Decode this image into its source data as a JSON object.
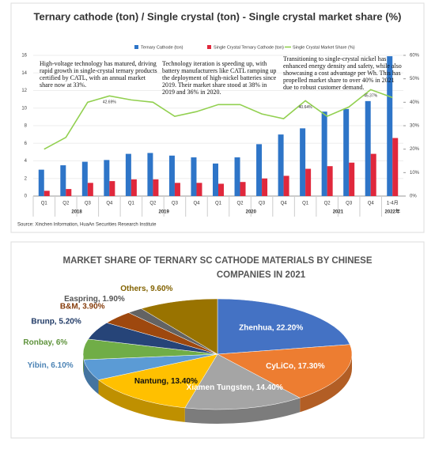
{
  "chart_data": [
    {
      "type": "bar-line",
      "title": "Ternary cathode (ton) / Single crystal (ton) - Single crystal market share (%)",
      "categories": [
        "Q1",
        "Q2",
        "Q3",
        "Q4",
        "Q1",
        "Q2",
        "Q3",
        "Q4",
        "Q1",
        "Q2",
        "Q3",
        "Q4",
        "Q1",
        "Q2",
        "Q3",
        "Q4",
        "1-4月"
      ],
      "groups": [
        "2018",
        "2019",
        "2020",
        "2021",
        "2022年"
      ],
      "series": [
        {
          "name": "Ternary Cathode (ton)",
          "color": "#2e75c8",
          "type": "bar",
          "values": [
            3.0,
            3.5,
            3.9,
            4.1,
            4.8,
            4.9,
            4.6,
            4.4,
            3.7,
            4.4,
            5.9,
            7.0,
            7.7,
            9.6,
            9.9,
            10.8,
            15.9
          ]
        },
        {
          "name": "Single Crystal Ternary Cathode (ton)",
          "color": "#e0283c",
          "type": "bar",
          "values": [
            0.6,
            0.8,
            1.5,
            1.7,
            1.9,
            1.9,
            1.5,
            1.5,
            1.4,
            1.6,
            2.0,
            2.3,
            3.1,
            3.4,
            3.8,
            4.8,
            6.6
          ]
        },
        {
          "name": "Single Crystal Market Share (%)",
          "color": "#92d050",
          "type": "line",
          "axis": "y2",
          "values": [
            20,
            25,
            40,
            42.69,
            41,
            40,
            34,
            36,
            39,
            39,
            35,
            33,
            40.64,
            34,
            38,
            45.37,
            42
          ],
          "value_labels": [
            null,
            null,
            null,
            "42.69%",
            null,
            null,
            null,
            null,
            null,
            null,
            null,
            null,
            "40.64%",
            null,
            null,
            "45.37%",
            null
          ]
        }
      ],
      "ylim": [
        0,
        16
      ],
      "yticks": [
        0,
        2,
        4,
        6,
        8,
        10,
        12,
        14,
        16
      ],
      "y2lim": [
        0,
        60
      ],
      "y2ticks": [
        {
          "value": 0,
          "label": "0%"
        },
        {
          "value": 10,
          "label": "10%"
        },
        {
          "value": 20,
          "label": "20%"
        },
        {
          "value": 30,
          "label": "30%"
        },
        {
          "value": 40,
          "label": "40%"
        },
        {
          "value": 50,
          "label": "50%"
        },
        {
          "value": 60,
          "label": "60%"
        }
      ],
      "annotations": [
        "High-voltage technology has matured, driving rapid growth in single-crystal ternary products certified by CATL, with an annual market share now at 33%.",
        "Technology iteration is speeding up, with battery manufacturers like CATL ramping up the deployment of high-nickel batteries since 2019. Their market share stood at 38% in 2019 and 36% in 2020.",
        "Transitioning to single-crystal nickel has enhanced energy density and safety, while also showcasing a cost advantage per Wh. This has propelled market share to over 40% in 2021 due to robust customer demand."
      ],
      "source": "Source: Xinchen Information, HuaAn Securities Research Institute"
    },
    {
      "type": "pie",
      "title": "MARKET SHARE OF TERNARY SC CATHODE MATERIALS BY CHINESE COMPANIES IN 2021",
      "values": [
        22.2,
        17.3,
        14.4,
        13.4,
        6.1,
        6,
        5.2,
        3.9,
        1.9,
        9.6
      ],
      "value_labels": [
        "Zhenhua, 22.20%",
        "CyLiCo, 17.30%",
        "Xiamen Tungsten, 14.40%",
        "Nantung, 13.40%",
        "Yibin, 6.10%",
        "Ronbay, 6%",
        "Brunp, 5.20%",
        "B&M, 3.90%",
        "Easpring, 1.90%",
        "Others, 9.60%"
      ],
      "colors": [
        "#4472c4",
        "#ed7d31",
        "#a5a5a5",
        "#ffc000",
        "#5b9bd5",
        "#70ad47",
        "#264478",
        "#9e480e",
        "#636363",
        "#997300"
      ]
    }
  ]
}
